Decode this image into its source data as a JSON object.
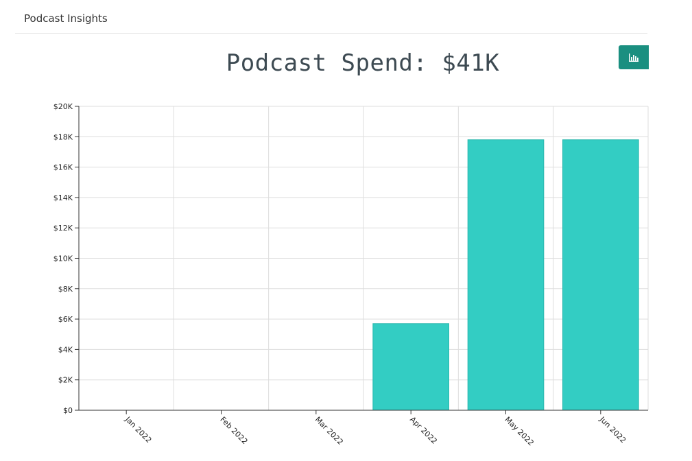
{
  "panel": {
    "title": "Podcast Insights"
  },
  "chart_data": {
    "type": "bar",
    "title": "Podcast Spend: $41K",
    "categories": [
      "Jan 2022",
      "Feb 2022",
      "Mar 2022",
      "Apr 2022",
      "May 2022",
      "Jun 2022"
    ],
    "values": [
      0,
      0,
      0,
      5700,
      17800,
      17800
    ],
    "ylim": [
      0,
      20000
    ],
    "yticks": [
      0,
      2000,
      4000,
      6000,
      8000,
      10000,
      12000,
      14000,
      16000,
      18000,
      20000
    ],
    "ytick_labels": [
      "$0",
      "$2K",
      "$4K",
      "$6K",
      "$8K",
      "$10K",
      "$12K",
      "$14K",
      "$16K",
      "$18K",
      "$20K"
    ],
    "xlabel": "",
    "ylabel": "",
    "grid": true,
    "bar_color": "#33cdc3"
  },
  "toolbar": {
    "chart_icon": "bar-chart-icon",
    "button_color": "#1a8f80"
  }
}
